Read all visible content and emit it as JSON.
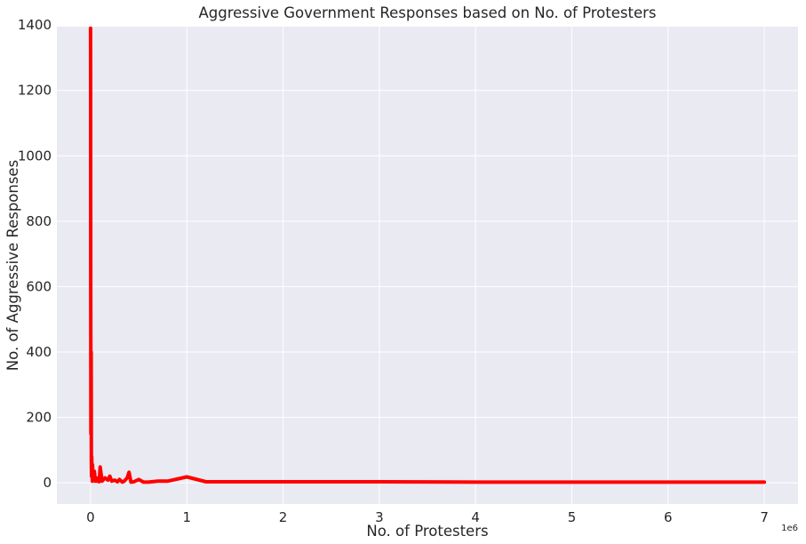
{
  "chart_data": {
    "type": "line",
    "title": "Aggressive Government Responses based on No. of Protesters",
    "xlabel": "No. of Protesters",
    "ylabel": "No. of Aggressive Responses",
    "x_offset_label": "1e6",
    "xlim": [
      -0.35,
      7.35
    ],
    "ylim": [
      -65,
      1395
    ],
    "x_ticks": [
      0,
      1,
      2,
      3,
      4,
      5,
      6,
      7
    ],
    "x_tick_labels": [
      "0",
      "1",
      "2",
      "3",
      "4",
      "5",
      "6",
      "7"
    ],
    "y_ticks": [
      0,
      200,
      400,
      600,
      800,
      1000,
      1200,
      1400
    ],
    "y_tick_labels": [
      "0",
      "200",
      "400",
      "600",
      "800",
      "1000",
      "1200",
      "1400"
    ],
    "grid": true,
    "background": "#eaeaf2",
    "grid_color": "#ffffff",
    "series": [
      {
        "name": "",
        "color": "#ff0000",
        "x": [
          0,
          0.001,
          0.002,
          0.004,
          0.006,
          0.008,
          0.01,
          0.012,
          0.015,
          0.018,
          0.02,
          0.025,
          0.03,
          0.04,
          0.05,
          0.06,
          0.07,
          0.08,
          0.09,
          0.1,
          0.12,
          0.15,
          0.18,
          0.2,
          0.22,
          0.25,
          0.28,
          0.3,
          0.33,
          0.35,
          0.38,
          0.4,
          0.42,
          0.45,
          0.5,
          0.55,
          0.6,
          0.7,
          0.8,
          1.0,
          1.2,
          1.5,
          2.0,
          3.0,
          4.0,
          5.0,
          6.0,
          6.5,
          7.0
        ],
        "y": [
          1390,
          1200,
          600,
          150,
          400,
          60,
          20,
          80,
          40,
          5,
          55,
          20,
          10,
          35,
          5,
          15,
          5,
          12,
          3,
          48,
          5,
          15,
          8,
          20,
          5,
          8,
          3,
          10,
          2,
          5,
          15,
          32,
          2,
          3,
          10,
          2,
          2,
          5,
          5,
          18,
          3,
          3,
          3,
          3,
          2,
          2,
          2,
          2,
          2
        ]
      }
    ]
  }
}
